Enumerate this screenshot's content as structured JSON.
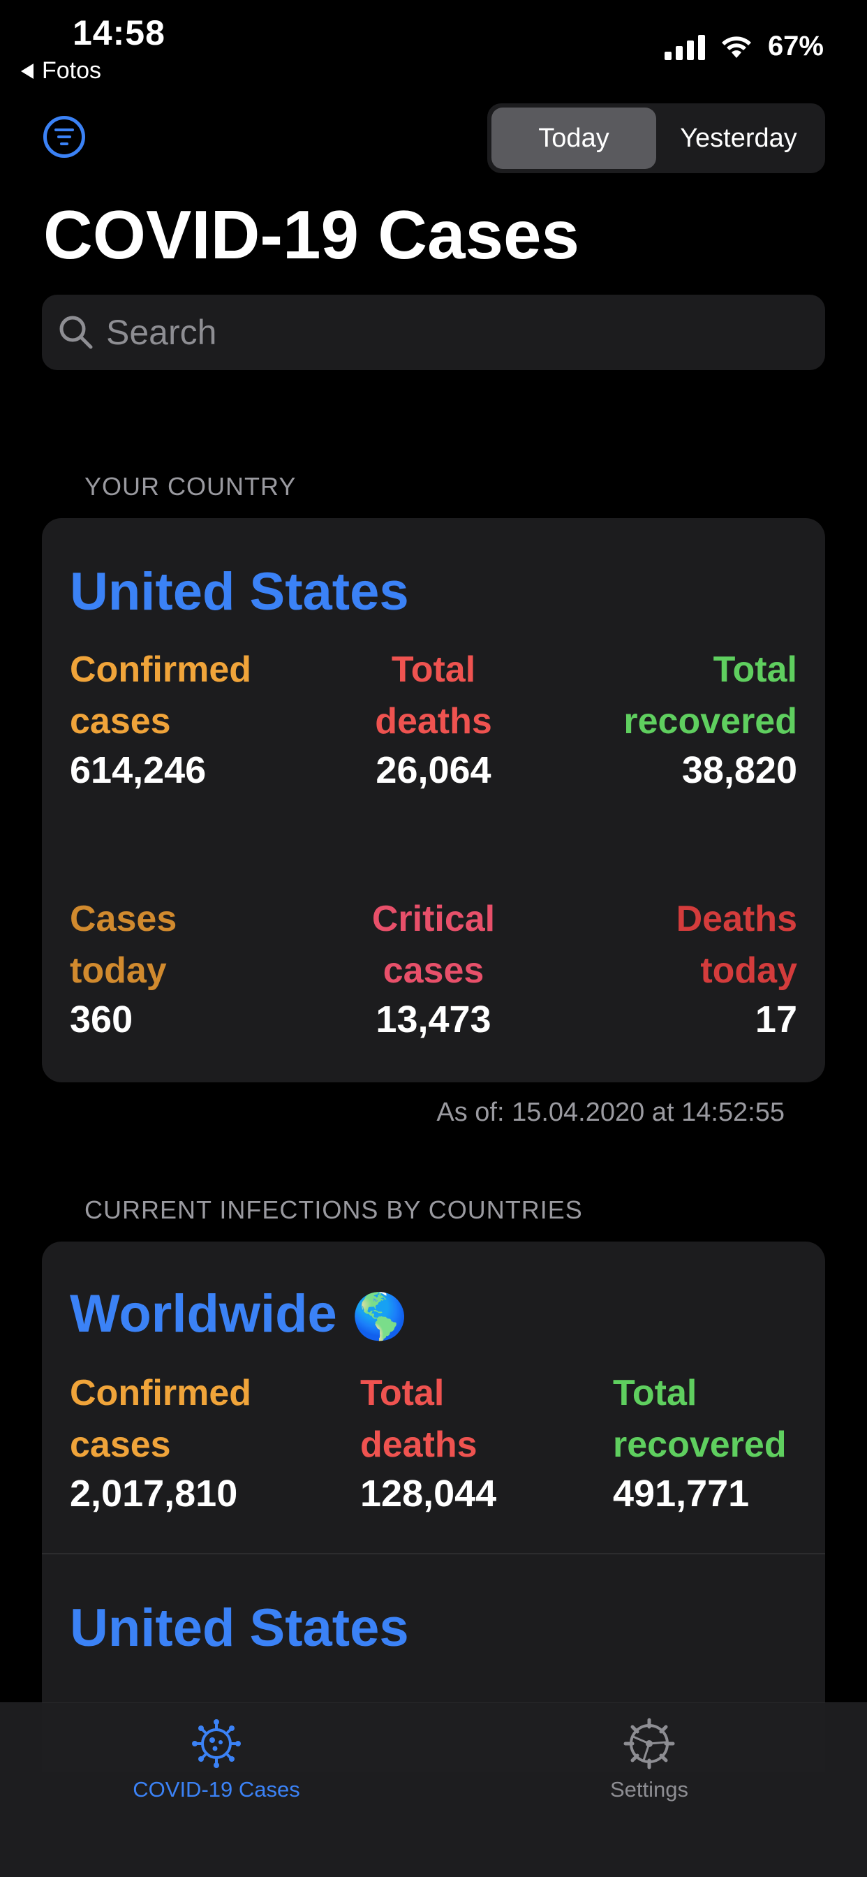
{
  "status_bar": {
    "time": "14:58",
    "back_label": "Fotos",
    "battery": "67%"
  },
  "header": {
    "segments": [
      "Today",
      "Yesterday"
    ],
    "selected_segment": "Today",
    "title": "COVID-19 Cases",
    "filter_icon": "filter-circle-icon"
  },
  "search": {
    "placeholder": "Search",
    "value": ""
  },
  "your_country": {
    "section_label": "YOUR COUNTRY",
    "name": "United States",
    "confirmed_label": "Confirmed\ncases",
    "confirmed_value": "614,246",
    "deaths_label": "Total\ndeaths",
    "deaths_value": "26,064",
    "recovered_label": "Total\nrecovered",
    "recovered_value": "38,820",
    "cases_today_label": "Cases\ntoday",
    "cases_today_value": "360",
    "critical_label": "Critical\ncases",
    "critical_value": "13,473",
    "deaths_today_label": "Deaths\ntoday",
    "deaths_today_value": "17",
    "as_of": "As of: 15.04.2020 at 14:52:55"
  },
  "by_countries": {
    "section_label": "CURRENT INFECTIONS BY COUNTRIES",
    "worldwide": {
      "name": "Worldwide",
      "emoji": "🌎",
      "confirmed_label": "Confirmed\ncases",
      "confirmed_value": "2,017,810",
      "deaths_label": "Total\ndeaths",
      "deaths_value": "128,044",
      "recovered_label": "Total\nrecovered",
      "recovered_value": "491,771"
    },
    "next_country": {
      "name": "United States"
    }
  },
  "tabbar": {
    "tabs": [
      {
        "label": "COVID-19 Cases",
        "icon": "virus-icon",
        "active": true
      },
      {
        "label": "Settings",
        "icon": "gear-icon",
        "active": false
      }
    ]
  },
  "colors": {
    "accent_blue": "#3b82f6",
    "confirmed": "#f0a43a",
    "deaths": "#ef5350",
    "recovered": "#5fcf5f",
    "cases_today": "#d18a2e",
    "critical": "#e8506a",
    "deaths_today": "#d43c3c"
  }
}
